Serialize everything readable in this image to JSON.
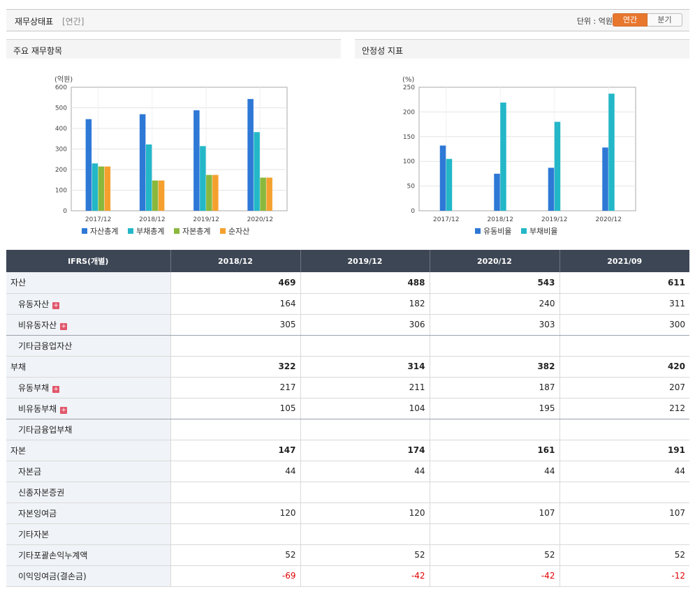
{
  "header": {
    "title": "재무상태표",
    "period": "[연간]",
    "unit_label": "단위 : 억원",
    "tabs": [
      {
        "label": "연간",
        "active": true
      },
      {
        "label": "분기",
        "active": false
      }
    ]
  },
  "panels": {
    "left_title": "주요 재무항목",
    "right_title": "안정성 지표"
  },
  "chart_data": [
    {
      "type": "bar",
      "unit": "(억원)",
      "categories": [
        "2017/12",
        "2018/12",
        "2019/12",
        "2020/12"
      ],
      "ylim": [
        0,
        600
      ],
      "yticks": [
        "0",
        "100",
        "200",
        "300",
        "400",
        "500",
        "600"
      ],
      "series": [
        {
          "name": "자산총계",
          "color": "#2e78d6",
          "values": [
            445,
            469,
            488,
            543
          ]
        },
        {
          "name": "부채총계",
          "color": "#23b7c8",
          "values": [
            230,
            322,
            314,
            382
          ]
        },
        {
          "name": "자본총계",
          "color": "#8ab83c",
          "values": [
            215,
            147,
            174,
            161
          ]
        },
        {
          "name": "순자산",
          "color": "#f5a02e",
          "values": [
            215,
            147,
            174,
            161
          ]
        }
      ],
      "grid": true,
      "legend": "bottom"
    },
    {
      "type": "bar",
      "unit": "(%)",
      "categories": [
        "2017/12",
        "2018/12",
        "2019/12",
        "2020/12"
      ],
      "ylim": [
        0,
        250
      ],
      "yticks": [
        "0",
        "50",
        "100",
        "150",
        "200",
        "250"
      ],
      "series": [
        {
          "name": "유동비율",
          "color": "#2e78d6",
          "values": [
            132,
            75,
            87,
            128
          ]
        },
        {
          "name": "부채비율",
          "color": "#23b7c8",
          "values": [
            105,
            219,
            180,
            237
          ]
        }
      ],
      "grid": true,
      "legend": "bottom"
    }
  ],
  "table": {
    "headers": [
      "IFRS(개별)",
      "2018/12",
      "2019/12",
      "2020/12",
      "2021/09"
    ],
    "rows": [
      {
        "label": "자산",
        "values": [
          "469",
          "488",
          "543",
          "611"
        ],
        "major": true
      },
      {
        "label": "유동자산",
        "values": [
          "164",
          "182",
          "240",
          "311"
        ],
        "plus": true
      },
      {
        "label": "비유동자산",
        "values": [
          "305",
          "306",
          "303",
          "300"
        ],
        "plus": true,
        "divider": true
      },
      {
        "label": "기타금융업자산",
        "values": [
          "",
          "",
          "",
          ""
        ]
      },
      {
        "label": "부채",
        "values": [
          "322",
          "314",
          "382",
          "420"
        ],
        "major": true
      },
      {
        "label": "유동부채",
        "values": [
          "217",
          "211",
          "187",
          "207"
        ],
        "plus": true
      },
      {
        "label": "비유동부채",
        "values": [
          "105",
          "104",
          "195",
          "212"
        ],
        "plus": true,
        "divider": true
      },
      {
        "label": "기타금융업부채",
        "values": [
          "",
          "",
          "",
          ""
        ]
      },
      {
        "label": "자본",
        "values": [
          "147",
          "174",
          "161",
          "191"
        ],
        "major": true
      },
      {
        "label": "자본금",
        "values": [
          "44",
          "44",
          "44",
          "44"
        ]
      },
      {
        "label": "신종자본증권",
        "values": [
          "",
          "",
          "",
          ""
        ]
      },
      {
        "label": "자본잉여금",
        "values": [
          "120",
          "120",
          "107",
          "107"
        ]
      },
      {
        "label": "기타자본",
        "values": [
          "",
          "",
          "",
          ""
        ]
      },
      {
        "label": "기타포괄손익누계액",
        "values": [
          "52",
          "52",
          "52",
          "52"
        ]
      },
      {
        "label": "이익잉여금(결손금)",
        "values": [
          "-69",
          "-42",
          "-42",
          "-12"
        ]
      }
    ]
  }
}
